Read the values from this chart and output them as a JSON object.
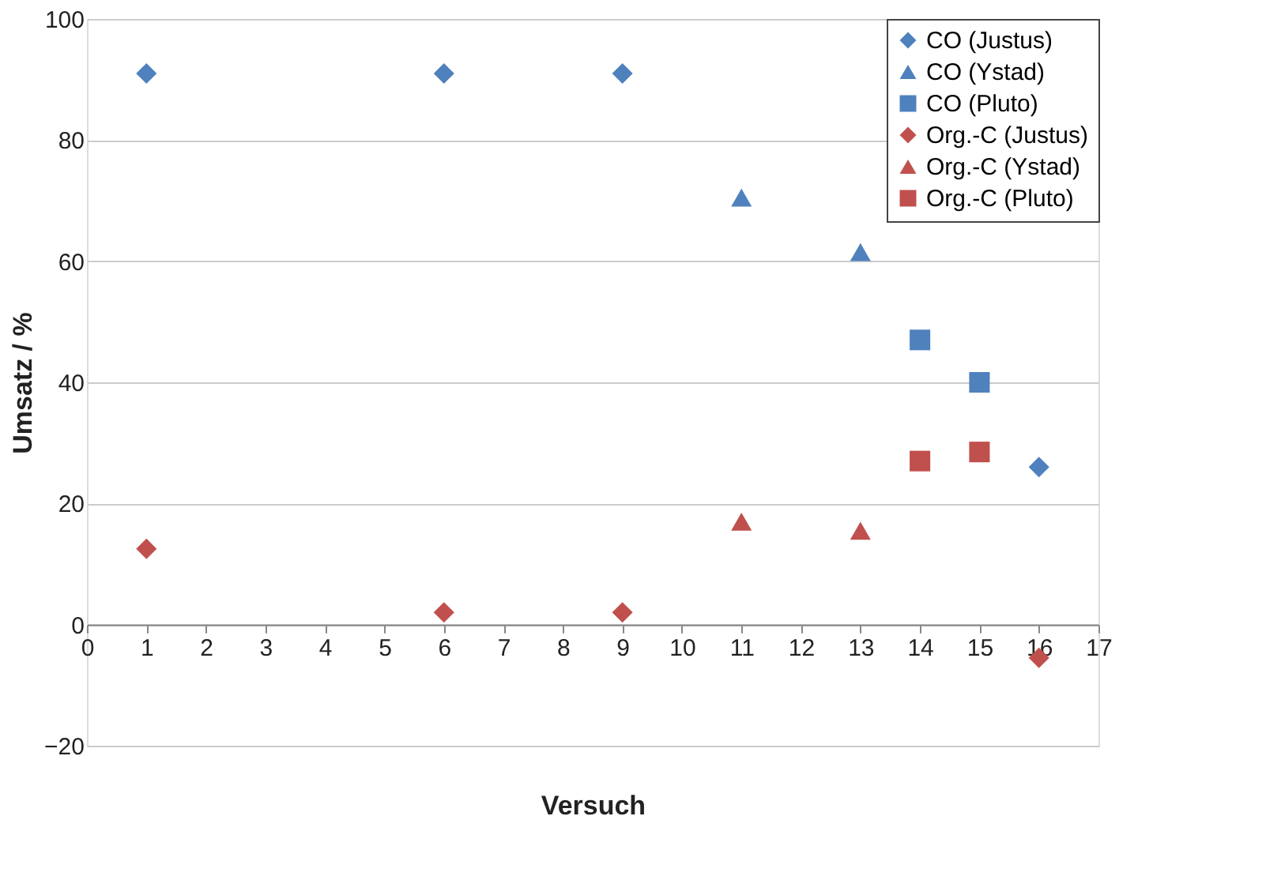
{
  "chart_data": {
    "type": "scatter",
    "xlabel": "Versuch",
    "ylabel": "Umsatz / %",
    "xlim": [
      0,
      17
    ],
    "xticks": [
      0,
      1,
      2,
      3,
      4,
      5,
      6,
      7,
      8,
      9,
      10,
      11,
      12,
      13,
      14,
      15,
      16,
      17
    ],
    "ylim": [
      -20,
      100
    ],
    "yticks": [
      -20,
      0,
      20,
      40,
      60,
      80,
      100
    ],
    "grid": "y",
    "legend": "top right",
    "series": [
      {
        "name": "CO (Justus)",
        "color": "#4f81bd",
        "marker": "diamond",
        "x": [
          1,
          6,
          9,
          16
        ],
        "values": [
          91,
          91,
          91,
          26
        ]
      },
      {
        "name": "CO (Ystad)",
        "color": "#4f81bd",
        "marker": "triangle",
        "x": [
          11,
          13
        ],
        "values": [
          70.5,
          61.5
        ]
      },
      {
        "name": "CO (Pluto)",
        "color": "#4f81bd",
        "marker": "square",
        "x": [
          14,
          15
        ],
        "values": [
          47,
          40
        ]
      },
      {
        "name": "Org.-C (Justus)",
        "color": "#c0504d",
        "marker": "diamond",
        "x": [
          1,
          6,
          9,
          16
        ],
        "values": [
          12.5,
          2,
          2,
          -5.5
        ]
      },
      {
        "name": "Org.-C (Ystad)",
        "color": "#c0504d",
        "marker": "triangle",
        "x": [
          11,
          13
        ],
        "values": [
          17,
          15.5
        ]
      },
      {
        "name": "Org.-C (Pluto)",
        "color": "#c0504d",
        "marker": "square",
        "x": [
          14,
          15
        ],
        "values": [
          27,
          28.5
        ]
      }
    ]
  }
}
